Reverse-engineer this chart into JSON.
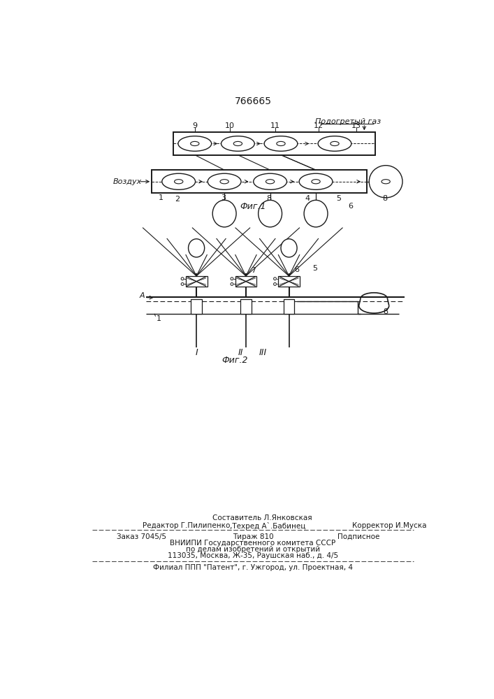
{
  "title_number": "766665",
  "fig1_label": "Фиг.1",
  "fig2_label": "Фиг.2",
  "label_podogretiy_gaz": "Подогретый газ",
  "label_vozduh": "Воздух",
  "footer_line1_left": "Редактор Г.Пилипенко",
  "footer_line1_center": "Составитель Л.Янковская",
  "footer_line1_mid": ",Техред А`.Бабинец",
  "footer_line1_right": "Корректор И.Муска",
  "footer_line2_left": "Заказ 7045/5",
  "footer_line2_center": "Тираж 810",
  "footer_line2_right": "Подписное",
  "footer_line3": "ВНИИПИ Государственного комитета СССР",
  "footer_line4": "по делам изобретений и открытий",
  "footer_line5": "113035, Москва, Ж-35, Раушская наб., д. 4/5",
  "footer_line6": "Филиал ППП \"Патент\", г. Ужгород, ул. Проектная, 4",
  "bg_color": "#ffffff",
  "line_color": "#1a1a1a",
  "text_color": "#1a1a1a"
}
